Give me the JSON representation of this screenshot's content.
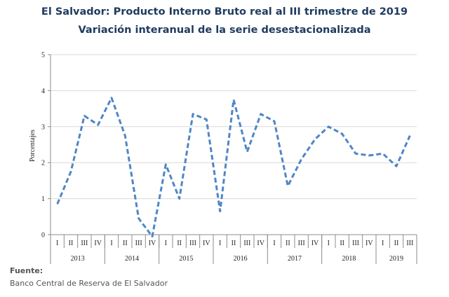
{
  "chart_data": {
    "type": "line",
    "title": "El Salvador: Producto Interno Bruto real al III trimestre de 2019",
    "subtitle": "Variación interanual de la serie desestacionalizada",
    "ylabel": "Porcentajes",
    "xlabel": "",
    "ylim": [
      0,
      5
    ],
    "yticks": [
      "0",
      "1",
      "2",
      "3",
      "4",
      "5"
    ],
    "grid": true,
    "legend": "none",
    "line_color": "#4f86c6",
    "line_style": "dashed",
    "quarters": [
      "I",
      "II",
      "III",
      "IV",
      "I",
      "II",
      "III",
      "IV",
      "I",
      "II",
      "III",
      "IV",
      "I",
      "II",
      "III",
      "IV",
      "I",
      "II",
      "III",
      "IV",
      "I",
      "II",
      "III",
      "IV",
      "I",
      "II",
      "III"
    ],
    "years": [
      {
        "label": "2013",
        "quarters": 4
      },
      {
        "label": "2014",
        "quarters": 4
      },
      {
        "label": "2015",
        "quarters": 4
      },
      {
        "label": "2016",
        "quarters": 4
      },
      {
        "label": "2017",
        "quarters": 4
      },
      {
        "label": "2018",
        "quarters": 4
      },
      {
        "label": "2019",
        "quarters": 3
      }
    ],
    "series": [
      {
        "values": [
          0.85,
          1.75,
          3.3,
          3.05,
          3.8,
          2.75,
          0.45,
          -0.05,
          1.95,
          1.0,
          3.35,
          3.2,
          0.65,
          3.75,
          2.3,
          3.35,
          3.15,
          1.35,
          2.1,
          2.65,
          3.0,
          2.8,
          2.25,
          2.2,
          2.25,
          1.9,
          2.75
        ]
      }
    ]
  },
  "source": {
    "label": "Fuente:",
    "text": "Banco Central de Reserva de El Salvador"
  }
}
